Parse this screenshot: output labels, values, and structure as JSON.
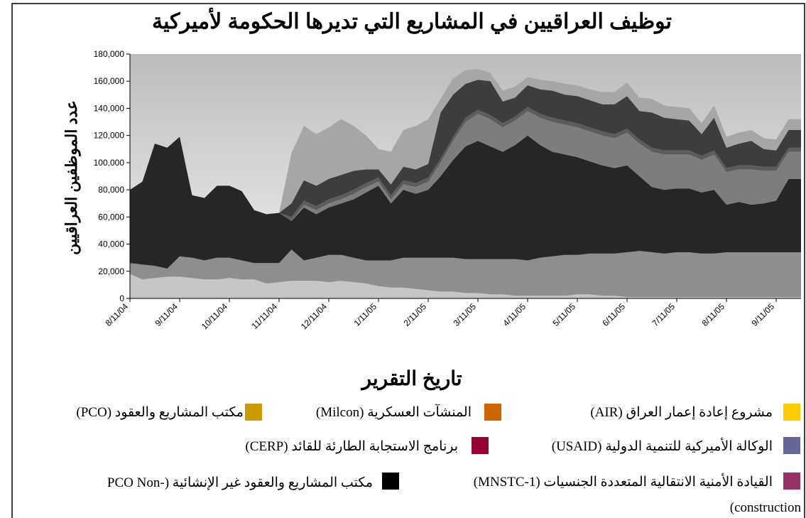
{
  "chart_data": {
    "type": "stacked_area",
    "title": "توظيف العراقيين في المشاريع التي تديرها الحكومة لأميركية",
    "y_label": "عدد الموظفين العراقيين",
    "x_label": "تاريخ التقرير",
    "categories": [
      "8/11/04",
      null,
      null,
      null,
      "9/11/04",
      null,
      null,
      null,
      "10/11/04",
      null,
      null,
      null,
      "11/11/04",
      null,
      null,
      null,
      "12/11/04",
      null,
      null,
      null,
      "1/11/05",
      null,
      null,
      null,
      "2/11/05",
      null,
      null,
      null,
      "3/11/05",
      null,
      null,
      null,
      "4/11/05",
      null,
      null,
      null,
      "5/11/05",
      null,
      null,
      null,
      "6/11/05",
      null,
      null,
      null,
      "7/11/05",
      null,
      null,
      null,
      "8/11/05",
      null,
      null,
      null,
      "9/11/05",
      null,
      null
    ],
    "ylim": [
      0,
      180000
    ],
    "yticks": [
      0,
      {
        "value": 20000,
        "label": "20,000"
      },
      {
        "value": 40000,
        "label": "40,000"
      },
      {
        "value": 60000,
        "label": "60,000"
      },
      {
        "value": 80000,
        "label": "80,000"
      },
      {
        "value": 100000,
        "label": "100,000"
      },
      {
        "value": 120000,
        "label": "120,000"
      },
      {
        "value": 140000,
        "label": "140,000"
      },
      {
        "value": 160000,
        "label": "160,000"
      },
      {
        "value": 180000,
        "label": "180,000"
      }
    ],
    "series": [
      {
        "name": "مشروع إعادة إعمار العراق (AIR)",
        "color": "#ffcc00",
        "area_color": "#c6c6c6",
        "values": [
          18000,
          14000,
          15000,
          16000,
          16000,
          15000,
          14000,
          14000,
          15000,
          14000,
          14000,
          11000,
          12000,
          13000,
          13000,
          13000,
          12000,
          13000,
          12000,
          11000,
          9000,
          8000,
          8000,
          7000,
          6000,
          5000,
          5000,
          4000,
          4000,
          3000,
          3000,
          2000,
          2000,
          2000,
          2000,
          2000,
          3000,
          3000,
          2000,
          2000,
          1000,
          1000,
          1000,
          1000,
          1000,
          1000,
          1000,
          1000,
          1000,
          1000,
          1000,
          1000,
          1000,
          1000,
          1000
        ]
      },
      {
        "name": "المنشآت العسكرية (Milcon)",
        "color": "#cc6600",
        "area_color": "#8e8e8e",
        "values": [
          8000,
          11000,
          9000,
          6000,
          15000,
          15000,
          14000,
          16000,
          15000,
          14000,
          12000,
          15000,
          14000,
          23000,
          15000,
          17000,
          20000,
          19000,
          18000,
          17000,
          19000,
          20000,
          22000,
          23000,
          24000,
          25000,
          25000,
          25000,
          25000,
          26000,
          26000,
          27000,
          26000,
          28000,
          29000,
          30000,
          29000,
          30000,
          31000,
          31000,
          33000,
          34000,
          33000,
          32000,
          33000,
          33000,
          32000,
          32000,
          33000,
          33000,
          33000,
          33000,
          33000,
          33000,
          33000
        ]
      },
      {
        "name": "مكتب المشاريع والعقود (PCO)",
        "color": "#cc9900",
        "area_color": "#262626",
        "values": [
          54000,
          61000,
          90000,
          89000,
          88000,
          46000,
          46000,
          53000,
          53000,
          51000,
          39000,
          36000,
          37000,
          21000,
          39000,
          32000,
          35000,
          38000,
          43000,
          50000,
          55000,
          42000,
          50000,
          47000,
          50000,
          60000,
          72000,
          83000,
          87000,
          83000,
          79000,
          84000,
          92000,
          83000,
          77000,
          74000,
          72000,
          68000,
          65000,
          63000,
          64000,
          55000,
          48000,
          47000,
          47000,
          47000,
          45000,
          47000,
          35000,
          37000,
          35000,
          36000,
          38000,
          54000,
          54000
        ]
      },
      {
        "name": "الوكالة الأميركية للتنمية الدولية (USAID)",
        "color": "#666699",
        "area_color": "#7d7d7d",
        "values": [
          0,
          0,
          0,
          0,
          0,
          0,
          0,
          0,
          0,
          0,
          0,
          0,
          0,
          0,
          2000,
          3000,
          3000,
          3000,
          4000,
          4000,
          3000,
          3000,
          4000,
          5000,
          6000,
          10000,
          14000,
          18000,
          20000,
          20000,
          18000,
          18000,
          18000,
          20000,
          22000,
          22000,
          22000,
          22000,
          22000,
          22000,
          24000,
          24000,
          26000,
          26000,
          25000,
          25000,
          24000,
          26000,
          24000,
          24000,
          26000,
          24000,
          22000,
          20000,
          20000
        ]
      },
      {
        "name": "برنامج الاستجابة الطارئة للقائد (CERP)",
        "color": "#990033",
        "area_color": "#5c5c5c",
        "values": [
          0,
          0,
          0,
          0,
          0,
          0,
          0,
          0,
          0,
          0,
          0,
          0,
          0,
          3000,
          3000,
          3000,
          3000,
          3000,
          3000,
          3000,
          3000,
          3000,
          3000,
          3000,
          3000,
          3000,
          3000,
          3000,
          3000,
          3000,
          3000,
          3000,
          3000,
          3000,
          3000,
          3000,
          3000,
          3000,
          3000,
          3000,
          3000,
          3000,
          3000,
          3000,
          3000,
          3000,
          3000,
          3000,
          3000,
          3000,
          3000,
          3000,
          3000,
          3000,
          3000
        ]
      },
      {
        "name": "القيادة الأمنية الانتقالية المتعددة الجنسيات (MNSTC-1)",
        "color": "#993366",
        "area_color": "#3d3d3d",
        "values": [
          0,
          0,
          0,
          0,
          0,
          0,
          0,
          0,
          0,
          0,
          0,
          0,
          0,
          10000,
          15000,
          15000,
          15000,
          15000,
          14000,
          10000,
          6000,
          8000,
          10000,
          10000,
          10000,
          34000,
          31000,
          25000,
          22000,
          25000,
          16000,
          14000,
          16000,
          18000,
          20000,
          19000,
          20000,
          20000,
          20000,
          22000,
          24000,
          21000,
          26000,
          24000,
          23000,
          22000,
          16000,
          24000,
          15000,
          16000,
          18000,
          13000,
          12000,
          13000,
          13000
        ]
      },
      {
        "name": "مكتب المشاريع والعقود غير الإنشائية (PCO Non-construction)",
        "color": "#000000",
        "area_color": "#a6a6a6",
        "values": [
          0,
          0,
          0,
          0,
          0,
          0,
          0,
          0,
          0,
          0,
          0,
          0,
          0,
          37000,
          40000,
          38000,
          38000,
          41000,
          33000,
          25000,
          15000,
          24000,
          27000,
          32000,
          33000,
          10000,
          12000,
          10000,
          8000,
          6000,
          8000,
          8000,
          6000,
          7000,
          7000,
          8000,
          8000,
          8000,
          9000,
          9000,
          10000,
          10000,
          10000,
          9000,
          9000,
          9000,
          8000,
          9000,
          8000,
          8000,
          8000,
          8000,
          8000,
          8000,
          8000
        ]
      }
    ]
  }
}
